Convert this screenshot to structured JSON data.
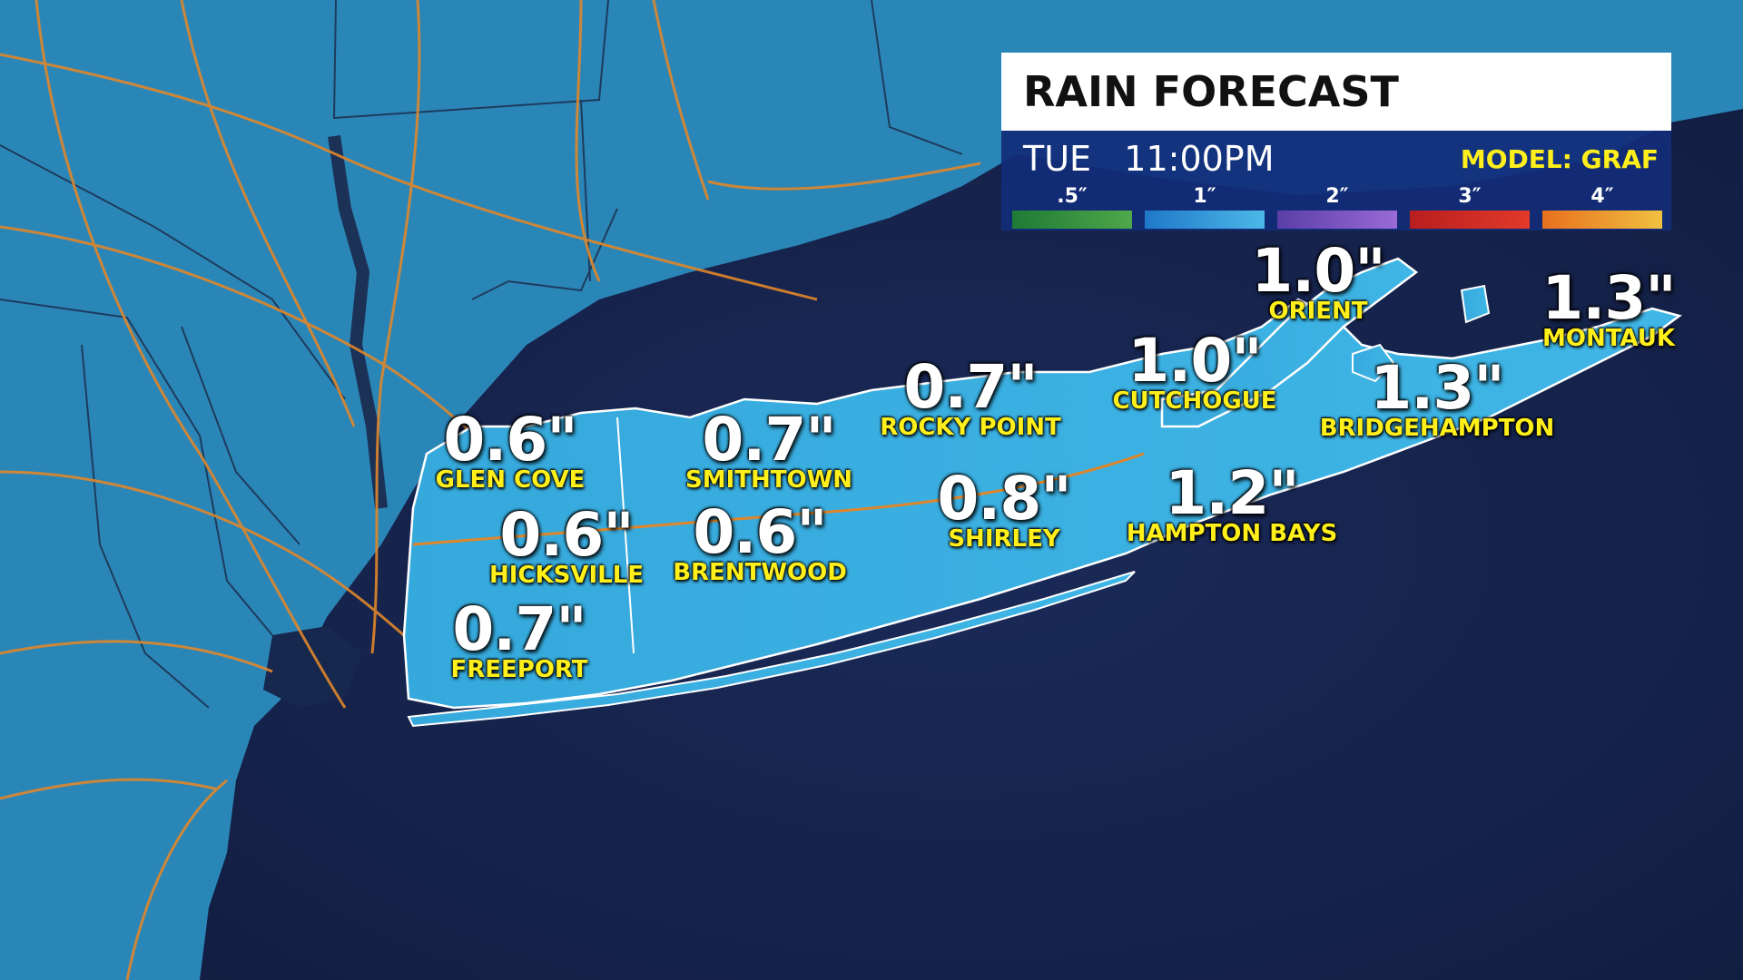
{
  "legend": {
    "title": "RAIN FORECAST",
    "day": "TUE",
    "time": "11:00PM",
    "model": "MODEL: GRAF",
    "scale": [
      {
        "label": ".5″",
        "from": "#1f7a36",
        "to": "#4fa84a"
      },
      {
        "label": "1″",
        "from": "#1f78c8",
        "to": "#4cb8e8"
      },
      {
        "label": "2″",
        "from": "#5a3ea8",
        "to": "#9a6ad6"
      },
      {
        "label": "3″",
        "from": "#b81e1e",
        "to": "#e23a2a"
      },
      {
        "label": "4″",
        "from": "#e8701e",
        "to": "#f0c040"
      }
    ]
  },
  "locations": [
    {
      "id": "glen-cove",
      "amount": "0.6\"",
      "name": "GLEN COVE"
    },
    {
      "id": "smithtown",
      "amount": "0.7\"",
      "name": "SMITHTOWN"
    },
    {
      "id": "rocky-point",
      "amount": "0.7\"",
      "name": "ROCKY POINT"
    },
    {
      "id": "cutchogue",
      "amount": "1.0\"",
      "name": "CUTCHOGUE"
    },
    {
      "id": "orient",
      "amount": "1.0\"",
      "name": "ORIENT"
    },
    {
      "id": "montauk",
      "amount": "1.3\"",
      "name": "MONTAUK"
    },
    {
      "id": "bridgehampton",
      "amount": "1.3\"",
      "name": "BRIDGEHAMPTON"
    },
    {
      "id": "hicksville",
      "amount": "0.6\"",
      "name": "HICKSVILLE"
    },
    {
      "id": "brentwood",
      "amount": "0.6\"",
      "name": "BRENTWOOD"
    },
    {
      "id": "shirley",
      "amount": "0.8\"",
      "name": "SHIRLEY"
    },
    {
      "id": "hampton-bays",
      "amount": "1.2\"",
      "name": "HAMPTON BAYS"
    },
    {
      "id": "freeport",
      "amount": "0.7\"",
      "name": "FREEPORT"
    }
  ],
  "colors": {
    "ocean": "#14224a",
    "land": "#2b86b8",
    "long_island": "#3aaee0",
    "roads": "#e0862a",
    "borders": "#1b2f4c",
    "label_amount": "#ffffff",
    "label_name": "#ffef1a"
  }
}
